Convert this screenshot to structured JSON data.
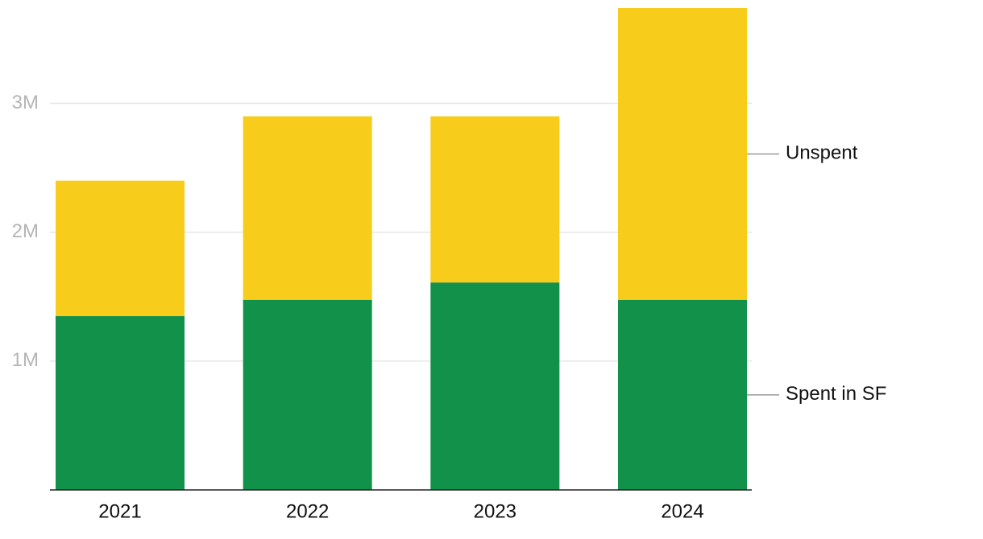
{
  "chart_data": {
    "type": "stacked_bar",
    "categories": [
      "2021",
      "2022",
      "2023",
      "2024"
    ],
    "series": [
      {
        "name": "Spent in SF",
        "color": "#12914a",
        "values": [
          1350000,
          1475000,
          1610000,
          1475000
        ]
      },
      {
        "name": "Unspent",
        "color": "#f8cc1b",
        "values": [
          1050000,
          1425000,
          1290000,
          2265000
        ]
      }
    ],
    "ylim": [
      0,
      3740000
    ],
    "yticks": [
      {
        "value": 1000000,
        "label": "1M"
      },
      {
        "value": 2000000,
        "label": "2M"
      },
      {
        "value": 3000000,
        "label": "3M"
      }
    ],
    "grid": true
  }
}
